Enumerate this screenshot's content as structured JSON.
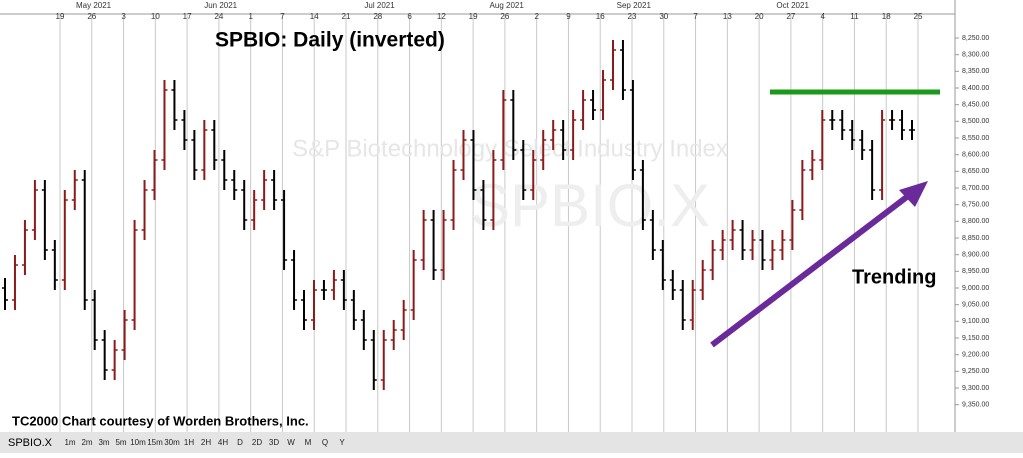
{
  "chart_data": {
    "type": "ohlc",
    "title": "SPBIO:  Daily (inverted)",
    "watermark": "SPBIO.X",
    "subwatermark": "S&P Biotechnology Select Industry Index",
    "annotation": "Trending",
    "credit": "TC2000 Chart courtesy of Worden Brothers, Inc.",
    "symbol": "SPBIO.X",
    "inverted": true,
    "up_color": "#000000",
    "down_color": "#8b1a1a",
    "ylim": [
      8226,
      9381
    ],
    "yticks": [
      {
        "value": 8250,
        "label": "8,250.00"
      },
      {
        "value": 8300,
        "label": "8,300.00"
      },
      {
        "value": 8350,
        "label": "8,350.00"
      },
      {
        "value": 8400,
        "label": "8,400.00"
      },
      {
        "value": 8450,
        "label": "8,450.00"
      },
      {
        "value": 8500,
        "label": "8,500.00"
      },
      {
        "value": 8550,
        "label": "8,550.00"
      },
      {
        "value": 8600,
        "label": "8,600.00"
      },
      {
        "value": 8650,
        "label": "8,650.00"
      },
      {
        "value": 8700,
        "label": "8,700.00"
      },
      {
        "value": 8750,
        "label": "8,750.00"
      },
      {
        "value": 8800,
        "label": "8,800.00"
      },
      {
        "value": 8850,
        "label": "8,850.00"
      },
      {
        "value": 8900,
        "label": "8,900.00"
      },
      {
        "value": 8950,
        "label": "8,950.00"
      },
      {
        "value": 9000,
        "label": "9,000.00"
      },
      {
        "value": 9050,
        "label": "9,050.00"
      },
      {
        "value": 9100,
        "label": "9,100.00"
      },
      {
        "value": 9150,
        "label": "9,150.00"
      },
      {
        "value": 9200,
        "label": "9,200.00"
      },
      {
        "value": 9250,
        "label": "9,250.00"
      },
      {
        "value": 9300,
        "label": "9,300.00"
      },
      {
        "value": 9350,
        "label": "9,350.00"
      }
    ],
    "date_ticks": [
      "19",
      "26",
      "3",
      "10",
      "17",
      "24",
      "1",
      "7",
      "14",
      "21",
      "28",
      "6",
      "12",
      "19",
      "26",
      "2",
      "9",
      "16",
      "23",
      "30",
      "7",
      "13",
      "20",
      "27",
      "4",
      "11",
      "18",
      "25"
    ],
    "months": [
      "May 2021",
      "Jun 2021",
      "Jul 2021",
      "Aug 2021",
      "Sep 2021",
      "Oct 2021"
    ],
    "open": [
      9000,
      9036,
      8931,
      8826,
      8706,
      8886,
      8976,
      8736,
      8676,
      9036,
      9156,
      9246,
      9186,
      9096,
      8826,
      8706,
      8616,
      8406,
      8496,
      8556,
      8646,
      8526,
      8616,
      8676,
      8706,
      8796,
      8736,
      8676,
      8736,
      8916,
      9036,
      9096,
      9006,
      9006,
      8976,
      9036,
      9096,
      9156,
      9276,
      9156,
      9126,
      9066,
      8916,
      8796,
      8946,
      8796,
      8646,
      8556,
      8706,
      8796,
      8616,
      8436,
      8586,
      8706,
      8616,
      8556,
      8526,
      8586,
      8496,
      8436,
      8466,
      8376,
      8286,
      8406,
      8646,
      8796,
      8886,
      8976,
      9006,
      9096,
      9006,
      8946,
      8886,
      8856,
      8826,
      8886,
      8856,
      8916,
      8886,
      8856,
      8766,
      8646,
      8616,
      8496,
      8496,
      8526,
      8556,
      8586,
      8706,
      8496,
      8496,
      8526
    ],
    "high": [
      9066,
      9066,
      8961,
      8856,
      8916,
      9006,
      9006,
      8766,
      9066,
      9186,
      9276,
      9276,
      9216,
      9126,
      8856,
      8736,
      8646,
      8526,
      8586,
      8676,
      8676,
      8646,
      8706,
      8736,
      8826,
      8826,
      8766,
      8766,
      8946,
      9066,
      9126,
      9126,
      9036,
      9036,
      9066,
      9126,
      9186,
      9306,
      9306,
      9186,
      9156,
      9096,
      8946,
      8976,
      8976,
      8826,
      8676,
      8736,
      8826,
      8826,
      8646,
      8616,
      8736,
      8736,
      8646,
      8586,
      8616,
      8616,
      8526,
      8496,
      8496,
      8406,
      8436,
      8676,
      8826,
      8916,
      9006,
      9036,
      9126,
      9126,
      9036,
      8976,
      8916,
      8886,
      8916,
      8916,
      8946,
      8946,
      8916,
      8886,
      8796,
      8676,
      8646,
      8526,
      8556,
      8586,
      8616,
      8736,
      8736,
      8526,
      8556,
      8556
    ],
    "low": [
      8970,
      8901,
      8796,
      8676,
      8676,
      8856,
      8706,
      8646,
      8646,
      9006,
      9126,
      9156,
      9066,
      8796,
      8676,
      8586,
      8376,
      8376,
      8466,
      8526,
      8496,
      8496,
      8586,
      8646,
      8676,
      8706,
      8646,
      8646,
      8706,
      8886,
      9006,
      8976,
      8976,
      8946,
      8946,
      9006,
      9066,
      9126,
      9126,
      9096,
      9036,
      8886,
      8766,
      8766,
      8766,
      8616,
      8526,
      8526,
      8676,
      8586,
      8406,
      8406,
      8556,
      8586,
      8526,
      8496,
      8496,
      8466,
      8406,
      8406,
      8346,
      8256,
      8256,
      8376,
      8616,
      8766,
      8856,
      8946,
      8976,
      8976,
      8916,
      8856,
      8826,
      8796,
      8796,
      8826,
      8826,
      8856,
      8826,
      8736,
      8616,
      8586,
      8466,
      8466,
      8466,
      8496,
      8526,
      8556,
      8466,
      8466,
      8466,
      8496
    ],
    "close": [
      9036,
      8931,
      8826,
      8706,
      8886,
      8976,
      8736,
      8676,
      9036,
      9156,
      9246,
      9186,
      9096,
      8826,
      8706,
      8616,
      8406,
      8496,
      8556,
      8646,
      8526,
      8616,
      8676,
      8706,
      8796,
      8736,
      8676,
      8736,
      8916,
      9036,
      9096,
      9006,
      9006,
      8976,
      9036,
      9096,
      9156,
      9276,
      9156,
      9126,
      9066,
      8916,
      8796,
      8946,
      8796,
      8646,
      8556,
      8706,
      8796,
      8616,
      8436,
      8586,
      8706,
      8616,
      8556,
      8526,
      8586,
      8496,
      8436,
      8466,
      8376,
      8286,
      8406,
      8646,
      8796,
      8886,
      8976,
      9006,
      9096,
      9006,
      8946,
      8886,
      8856,
      8826,
      8886,
      8856,
      8916,
      8886,
      8856,
      8766,
      8646,
      8616,
      8496,
      8496,
      8526,
      8556,
      8586,
      8706,
      8496,
      8496,
      8526,
      8526
    ],
    "toolbar": [
      "1m",
      "2m",
      "3m",
      "5m",
      "10m",
      "15m",
      "30m",
      "1H",
      "2H",
      "4H",
      "D",
      "2D",
      "3D",
      "W",
      "M",
      "Q",
      "Y"
    ]
  }
}
